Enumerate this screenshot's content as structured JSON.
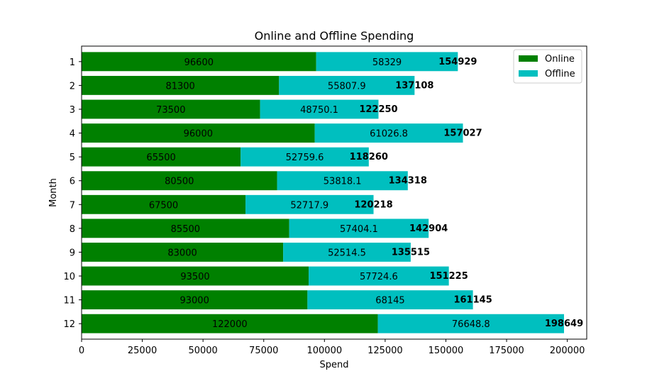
{
  "chart_data": {
    "type": "bar",
    "orientation": "horizontal",
    "stacked": true,
    "title": "Online and Offline Spending",
    "xlabel": "Spend",
    "ylabel": "Month",
    "categories": [
      "1",
      "2",
      "3",
      "4",
      "5",
      "6",
      "7",
      "8",
      "9",
      "10",
      "11",
      "12"
    ],
    "xlim": [
      0,
      208000
    ],
    "xticks": [
      0,
      25000,
      50000,
      75000,
      100000,
      125000,
      150000,
      175000,
      200000
    ],
    "series": [
      {
        "name": "Online",
        "color": "#008000",
        "values": [
          96600,
          81300,
          73500,
          96000,
          65500,
          80500,
          67500,
          85500,
          83000,
          93500,
          93000,
          122000
        ],
        "labels": [
          "96600",
          "81300",
          "73500",
          "96000",
          "65500",
          "80500",
          "67500",
          "85500",
          "83000",
          "93500",
          "93000",
          "122000"
        ]
      },
      {
        "name": "Offline",
        "color": "#00bfbf",
        "values": [
          58329,
          55807.9,
          48750.1,
          61026.8,
          52759.6,
          53818.1,
          52717.9,
          57404.1,
          52514.5,
          57724.6,
          68145,
          76648.8
        ],
        "labels": [
          "58329",
          "55807.9",
          "48750.1",
          "61026.8",
          "52759.6",
          "53818.1",
          "52717.9",
          "57404.1",
          "52514.5",
          "57724.6",
          "68145",
          "76648.8"
        ]
      }
    ],
    "totals": [
      154929,
      137108,
      122250,
      157027,
      118260,
      134318,
      120218,
      142904,
      135515,
      151225,
      161145,
      198649
    ],
    "total_labels": [
      "154929",
      "137108",
      "122250",
      "157027",
      "118260",
      "134318",
      "120218",
      "142904",
      "135515",
      "151225",
      "161145",
      "198649"
    ],
    "legend": {
      "placement": "top-right"
    },
    "grid": false
  }
}
